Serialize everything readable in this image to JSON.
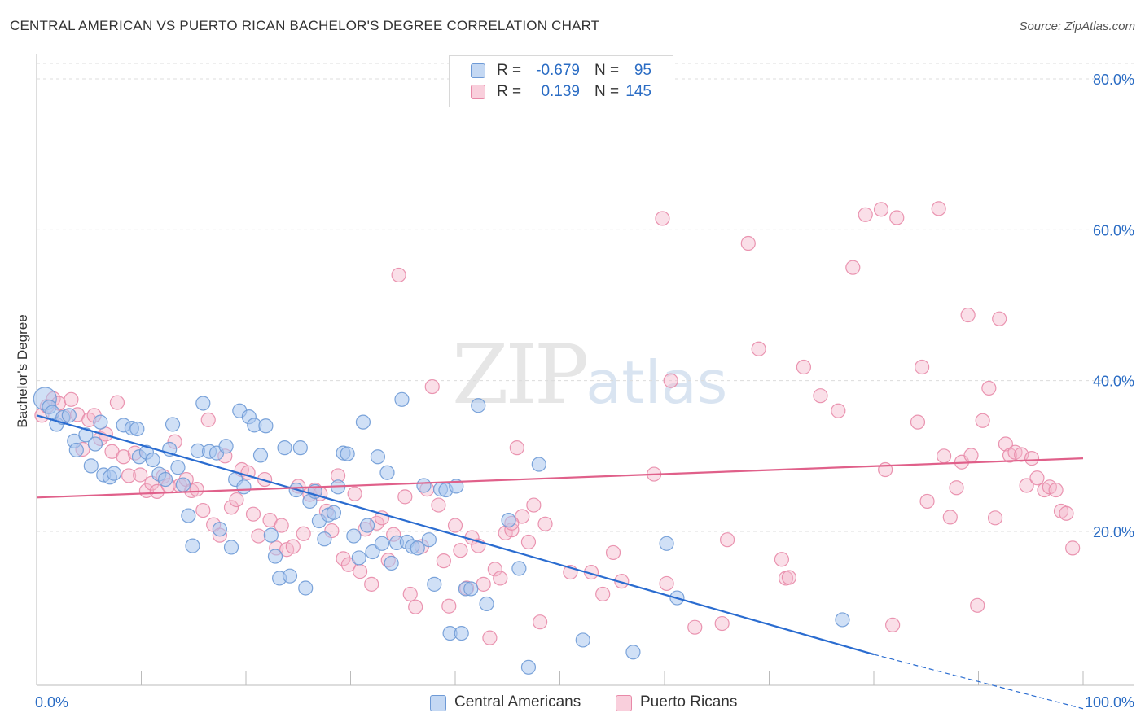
{
  "title": "CENTRAL AMERICAN VS PUERTO RICAN BACHELOR'S DEGREE CORRELATION CHART",
  "source": "Source: ZipAtlas.com",
  "watermark": {
    "zip": "ZIP",
    "atlas": "atlas"
  },
  "colors": {
    "blue_fill": "#a9c6ee",
    "blue_stroke": "#6e9ad6",
    "blue_line": "#2a6cd0",
    "pink_fill": "#f5b8cb",
    "pink_stroke": "#e889a8",
    "pink_line": "#e0608a",
    "value_text": "#2a6cc4",
    "grid": "#dcdcdc"
  },
  "legend": {
    "rows": [
      {
        "r_label": "R =",
        "r_value": "-0.679",
        "n_label": "N =",
        "n_value": "95",
        "color": "blue"
      },
      {
        "r_label": "R =",
        "r_value": "0.139",
        "n_label": "N =",
        "n_value": "145",
        "color": "pink"
      }
    ],
    "bottom": [
      {
        "label": "Central Americans",
        "color": "blue"
      },
      {
        "label": "Puerto Ricans",
        "color": "pink"
      }
    ]
  },
  "chart_data": {
    "type": "scatter",
    "title": "CENTRAL AMERICAN VS PUERTO RICAN BACHELOR'S DEGREE CORRELATION CHART",
    "xlabel": "",
    "ylabel": "Bachelor's Degree",
    "xlim": [
      0,
      100
    ],
    "ylim": [
      0,
      83
    ],
    "x_tick_labels": [
      "0.0%",
      "100.0%"
    ],
    "y_ticks": [
      20,
      40,
      60,
      80
    ],
    "y_tick_labels": [
      "20.0%",
      "40.0%",
      "60.0%",
      "80.0%"
    ],
    "grid": true,
    "series": [
      {
        "name": "Central Americans",
        "color": "blue",
        "trend": {
          "x": [
            0,
            80
          ],
          "y": [
            35.4,
            3.7
          ],
          "dashed_to": [
            100,
            -3.5
          ]
        },
        "points": [
          [
            0.8,
            37.6
          ],
          [
            1.2,
            36.5
          ],
          [
            1.5,
            35.8
          ],
          [
            1.9,
            34.2
          ],
          [
            2.5,
            35.1
          ],
          [
            3.1,
            35.4
          ],
          [
            3.6,
            32.0
          ],
          [
            4.7,
            32.8
          ],
          [
            5.6,
            31.6
          ],
          [
            3.8,
            30.8
          ],
          [
            5.2,
            28.7
          ],
          [
            6.4,
            27.5
          ],
          [
            7.0,
            27.2
          ],
          [
            7.4,
            27.7
          ],
          [
            8.3,
            34.1
          ],
          [
            9.1,
            33.7
          ],
          [
            9.6,
            33.6
          ],
          [
            9.8,
            29.9
          ],
          [
            10.5,
            30.5
          ],
          [
            11.1,
            29.5
          ],
          [
            11.7,
            27.6
          ],
          [
            12.3,
            26.9
          ],
          [
            12.7,
            30.9
          ],
          [
            13.0,
            34.2
          ],
          [
            13.5,
            28.5
          ],
          [
            14.0,
            26.2
          ],
          [
            14.5,
            22.1
          ],
          [
            14.9,
            18.1
          ],
          [
            15.4,
            30.7
          ],
          [
            15.9,
            37.0
          ],
          [
            16.5,
            30.6
          ],
          [
            17.2,
            30.4
          ],
          [
            17.5,
            20.3
          ],
          [
            18.1,
            31.3
          ],
          [
            18.6,
            17.9
          ],
          [
            19.0,
            26.9
          ],
          [
            19.4,
            36.0
          ],
          [
            19.8,
            25.9
          ],
          [
            20.3,
            35.2
          ],
          [
            20.8,
            34.1
          ],
          [
            21.4,
            30.1
          ],
          [
            21.9,
            34.0
          ],
          [
            22.4,
            19.5
          ],
          [
            22.8,
            16.7
          ],
          [
            23.2,
            13.8
          ],
          [
            23.7,
            31.1
          ],
          [
            24.2,
            14.1
          ],
          [
            24.8,
            25.5
          ],
          [
            25.2,
            31.1
          ],
          [
            25.7,
            12.5
          ],
          [
            26.1,
            24.0
          ],
          [
            26.6,
            25.3
          ],
          [
            27.0,
            21.4
          ],
          [
            27.5,
            19.0
          ],
          [
            27.9,
            22.2
          ],
          [
            28.4,
            22.5
          ],
          [
            28.8,
            25.9
          ],
          [
            29.3,
            30.4
          ],
          [
            29.7,
            30.3
          ],
          [
            30.3,
            19.4
          ],
          [
            30.8,
            16.5
          ],
          [
            31.2,
            34.5
          ],
          [
            31.6,
            20.8
          ],
          [
            32.1,
            17.3
          ],
          [
            32.6,
            29.9
          ],
          [
            33.0,
            18.4
          ],
          [
            33.5,
            27.8
          ],
          [
            33.9,
            15.8
          ],
          [
            34.4,
            18.5
          ],
          [
            34.9,
            37.5
          ],
          [
            35.4,
            18.6
          ],
          [
            35.9,
            18.0
          ],
          [
            36.4,
            17.8
          ],
          [
            37.0,
            26.1
          ],
          [
            37.5,
            18.9
          ],
          [
            38.0,
            13.0
          ],
          [
            38.6,
            25.6
          ],
          [
            39.1,
            25.5
          ],
          [
            39.5,
            6.5
          ],
          [
            40.1,
            26.0
          ],
          [
            40.6,
            6.5
          ],
          [
            41.0,
            12.4
          ],
          [
            41.5,
            12.4
          ],
          [
            42.2,
            36.7
          ],
          [
            43.0,
            10.4
          ],
          [
            45.1,
            21.5
          ],
          [
            46.1,
            15.1
          ],
          [
            47.0,
            2.0
          ],
          [
            48.0,
            28.9
          ],
          [
            52.2,
            5.6
          ],
          [
            57.0,
            4.0
          ],
          [
            60.2,
            18.4
          ],
          [
            61.2,
            11.2
          ],
          [
            77.0,
            8.3
          ],
          [
            6.1,
            34.5
          ]
        ]
      },
      {
        "name": "Puerto Ricans",
        "color": "pink",
        "trend": {
          "x": [
            0,
            100
          ],
          "y": [
            24.5,
            29.7
          ]
        },
        "points": [
          [
            0.5,
            35.4
          ],
          [
            1.0,
            36.6
          ],
          [
            1.6,
            37.6
          ],
          [
            2.1,
            37.0
          ],
          [
            2.6,
            35.3
          ],
          [
            3.3,
            37.5
          ],
          [
            3.9,
            35.5
          ],
          [
            4.4,
            30.9
          ],
          [
            5.0,
            34.8
          ],
          [
            5.5,
            35.4
          ],
          [
            6.1,
            32.3
          ],
          [
            6.6,
            32.9
          ],
          [
            7.2,
            30.6
          ],
          [
            7.7,
            37.1
          ],
          [
            8.3,
            29.9
          ],
          [
            8.8,
            27.4
          ],
          [
            9.4,
            30.4
          ],
          [
            9.9,
            27.5
          ],
          [
            10.5,
            25.4
          ],
          [
            11.0,
            26.4
          ],
          [
            11.5,
            25.3
          ],
          [
            12.1,
            27.3
          ],
          [
            12.6,
            26.1
          ],
          [
            13.2,
            31.9
          ],
          [
            13.7,
            26.1
          ],
          [
            14.3,
            26.9
          ],
          [
            14.8,
            25.4
          ],
          [
            15.3,
            25.6
          ],
          [
            15.9,
            22.8
          ],
          [
            16.4,
            34.8
          ],
          [
            16.9,
            20.9
          ],
          [
            17.5,
            19.5
          ],
          [
            18.0,
            30.0
          ],
          [
            18.6,
            23.2
          ],
          [
            19.1,
            24.2
          ],
          [
            19.6,
            28.2
          ],
          [
            20.2,
            27.8
          ],
          [
            20.7,
            22.3
          ],
          [
            21.2,
            19.4
          ],
          [
            21.8,
            26.9
          ],
          [
            22.3,
            21.5
          ],
          [
            22.9,
            17.8
          ],
          [
            23.4,
            20.8
          ],
          [
            23.9,
            17.6
          ],
          [
            24.5,
            18.0
          ],
          [
            25.0,
            26.0
          ],
          [
            25.5,
            19.7
          ],
          [
            26.1,
            24.9
          ],
          [
            26.6,
            25.5
          ],
          [
            27.1,
            25.0
          ],
          [
            27.7,
            22.7
          ],
          [
            28.2,
            20.1
          ],
          [
            28.8,
            27.4
          ],
          [
            29.3,
            16.4
          ],
          [
            29.8,
            15.6
          ],
          [
            30.4,
            25.0
          ],
          [
            30.9,
            14.7
          ],
          [
            31.4,
            20.3
          ],
          [
            32.0,
            13.0
          ],
          [
            32.5,
            21.1
          ],
          [
            33.0,
            21.8
          ],
          [
            33.6,
            16.2
          ],
          [
            34.1,
            19.6
          ],
          [
            34.6,
            54.0
          ],
          [
            35.2,
            24.6
          ],
          [
            35.7,
            11.7
          ],
          [
            36.2,
            10.0
          ],
          [
            36.8,
            18.0
          ],
          [
            37.3,
            25.6
          ],
          [
            37.8,
            39.2
          ],
          [
            38.4,
            23.5
          ],
          [
            38.9,
            16.1
          ],
          [
            39.4,
            10.1
          ],
          [
            40.0,
            20.8
          ],
          [
            40.5,
            17.5
          ],
          [
            41.1,
            12.5
          ],
          [
            41.6,
            19.2
          ],
          [
            42.2,
            18.1
          ],
          [
            42.7,
            13.0
          ],
          [
            43.3,
            5.9
          ],
          [
            43.8,
            15.0
          ],
          [
            44.3,
            13.8
          ],
          [
            44.8,
            19.8
          ],
          [
            45.4,
            20.2
          ],
          [
            45.9,
            31.1
          ],
          [
            46.4,
            22.0
          ],
          [
            47.0,
            18.6
          ],
          [
            47.5,
            23.5
          ],
          [
            48.1,
            8.0
          ],
          [
            48.6,
            21.0
          ],
          [
            51.0,
            14.6
          ],
          [
            53.0,
            14.6
          ],
          [
            54.1,
            11.7
          ],
          [
            55.1,
            17.2
          ],
          [
            55.9,
            13.4
          ],
          [
            59.0,
            27.6
          ],
          [
            60.2,
            13.1
          ],
          [
            60.6,
            40.0
          ],
          [
            59.8,
            61.5
          ],
          [
            62.9,
            7.3
          ],
          [
            66.0,
            18.9
          ],
          [
            68.0,
            58.2
          ],
          [
            69.0,
            44.2
          ],
          [
            71.2,
            16.3
          ],
          [
            71.6,
            13.8
          ],
          [
            73.3,
            41.8
          ],
          [
            74.9,
            38.0
          ],
          [
            76.6,
            36.0
          ],
          [
            78.0,
            55.0
          ],
          [
            79.2,
            62.0
          ],
          [
            80.7,
            62.7
          ],
          [
            81.1,
            28.2
          ],
          [
            81.8,
            7.6
          ],
          [
            82.2,
            61.6
          ],
          [
            84.2,
            34.5
          ],
          [
            84.6,
            41.8
          ],
          [
            85.1,
            24.0
          ],
          [
            86.2,
            62.8
          ],
          [
            86.7,
            30.0
          ],
          [
            87.3,
            21.9
          ],
          [
            87.9,
            25.8
          ],
          [
            88.4,
            29.2
          ],
          [
            89.0,
            48.7
          ],
          [
            89.3,
            30.1
          ],
          [
            89.9,
            10.2
          ],
          [
            90.4,
            34.7
          ],
          [
            91.0,
            39.0
          ],
          [
            91.6,
            21.8
          ],
          [
            92.0,
            48.2
          ],
          [
            92.6,
            31.6
          ],
          [
            93.0,
            30.1
          ],
          [
            93.5,
            30.5
          ],
          [
            94.1,
            30.2
          ],
          [
            94.6,
            26.1
          ],
          [
            95.1,
            29.7
          ],
          [
            95.6,
            27.1
          ],
          [
            96.3,
            25.5
          ],
          [
            96.8,
            25.9
          ],
          [
            97.4,
            25.5
          ],
          [
            97.9,
            22.7
          ],
          [
            98.4,
            22.4
          ],
          [
            99.0,
            17.8
          ],
          [
            71.9,
            13.9
          ],
          [
            65.5,
            7.8
          ],
          [
            45.4,
            21.1
          ]
        ]
      }
    ]
  }
}
